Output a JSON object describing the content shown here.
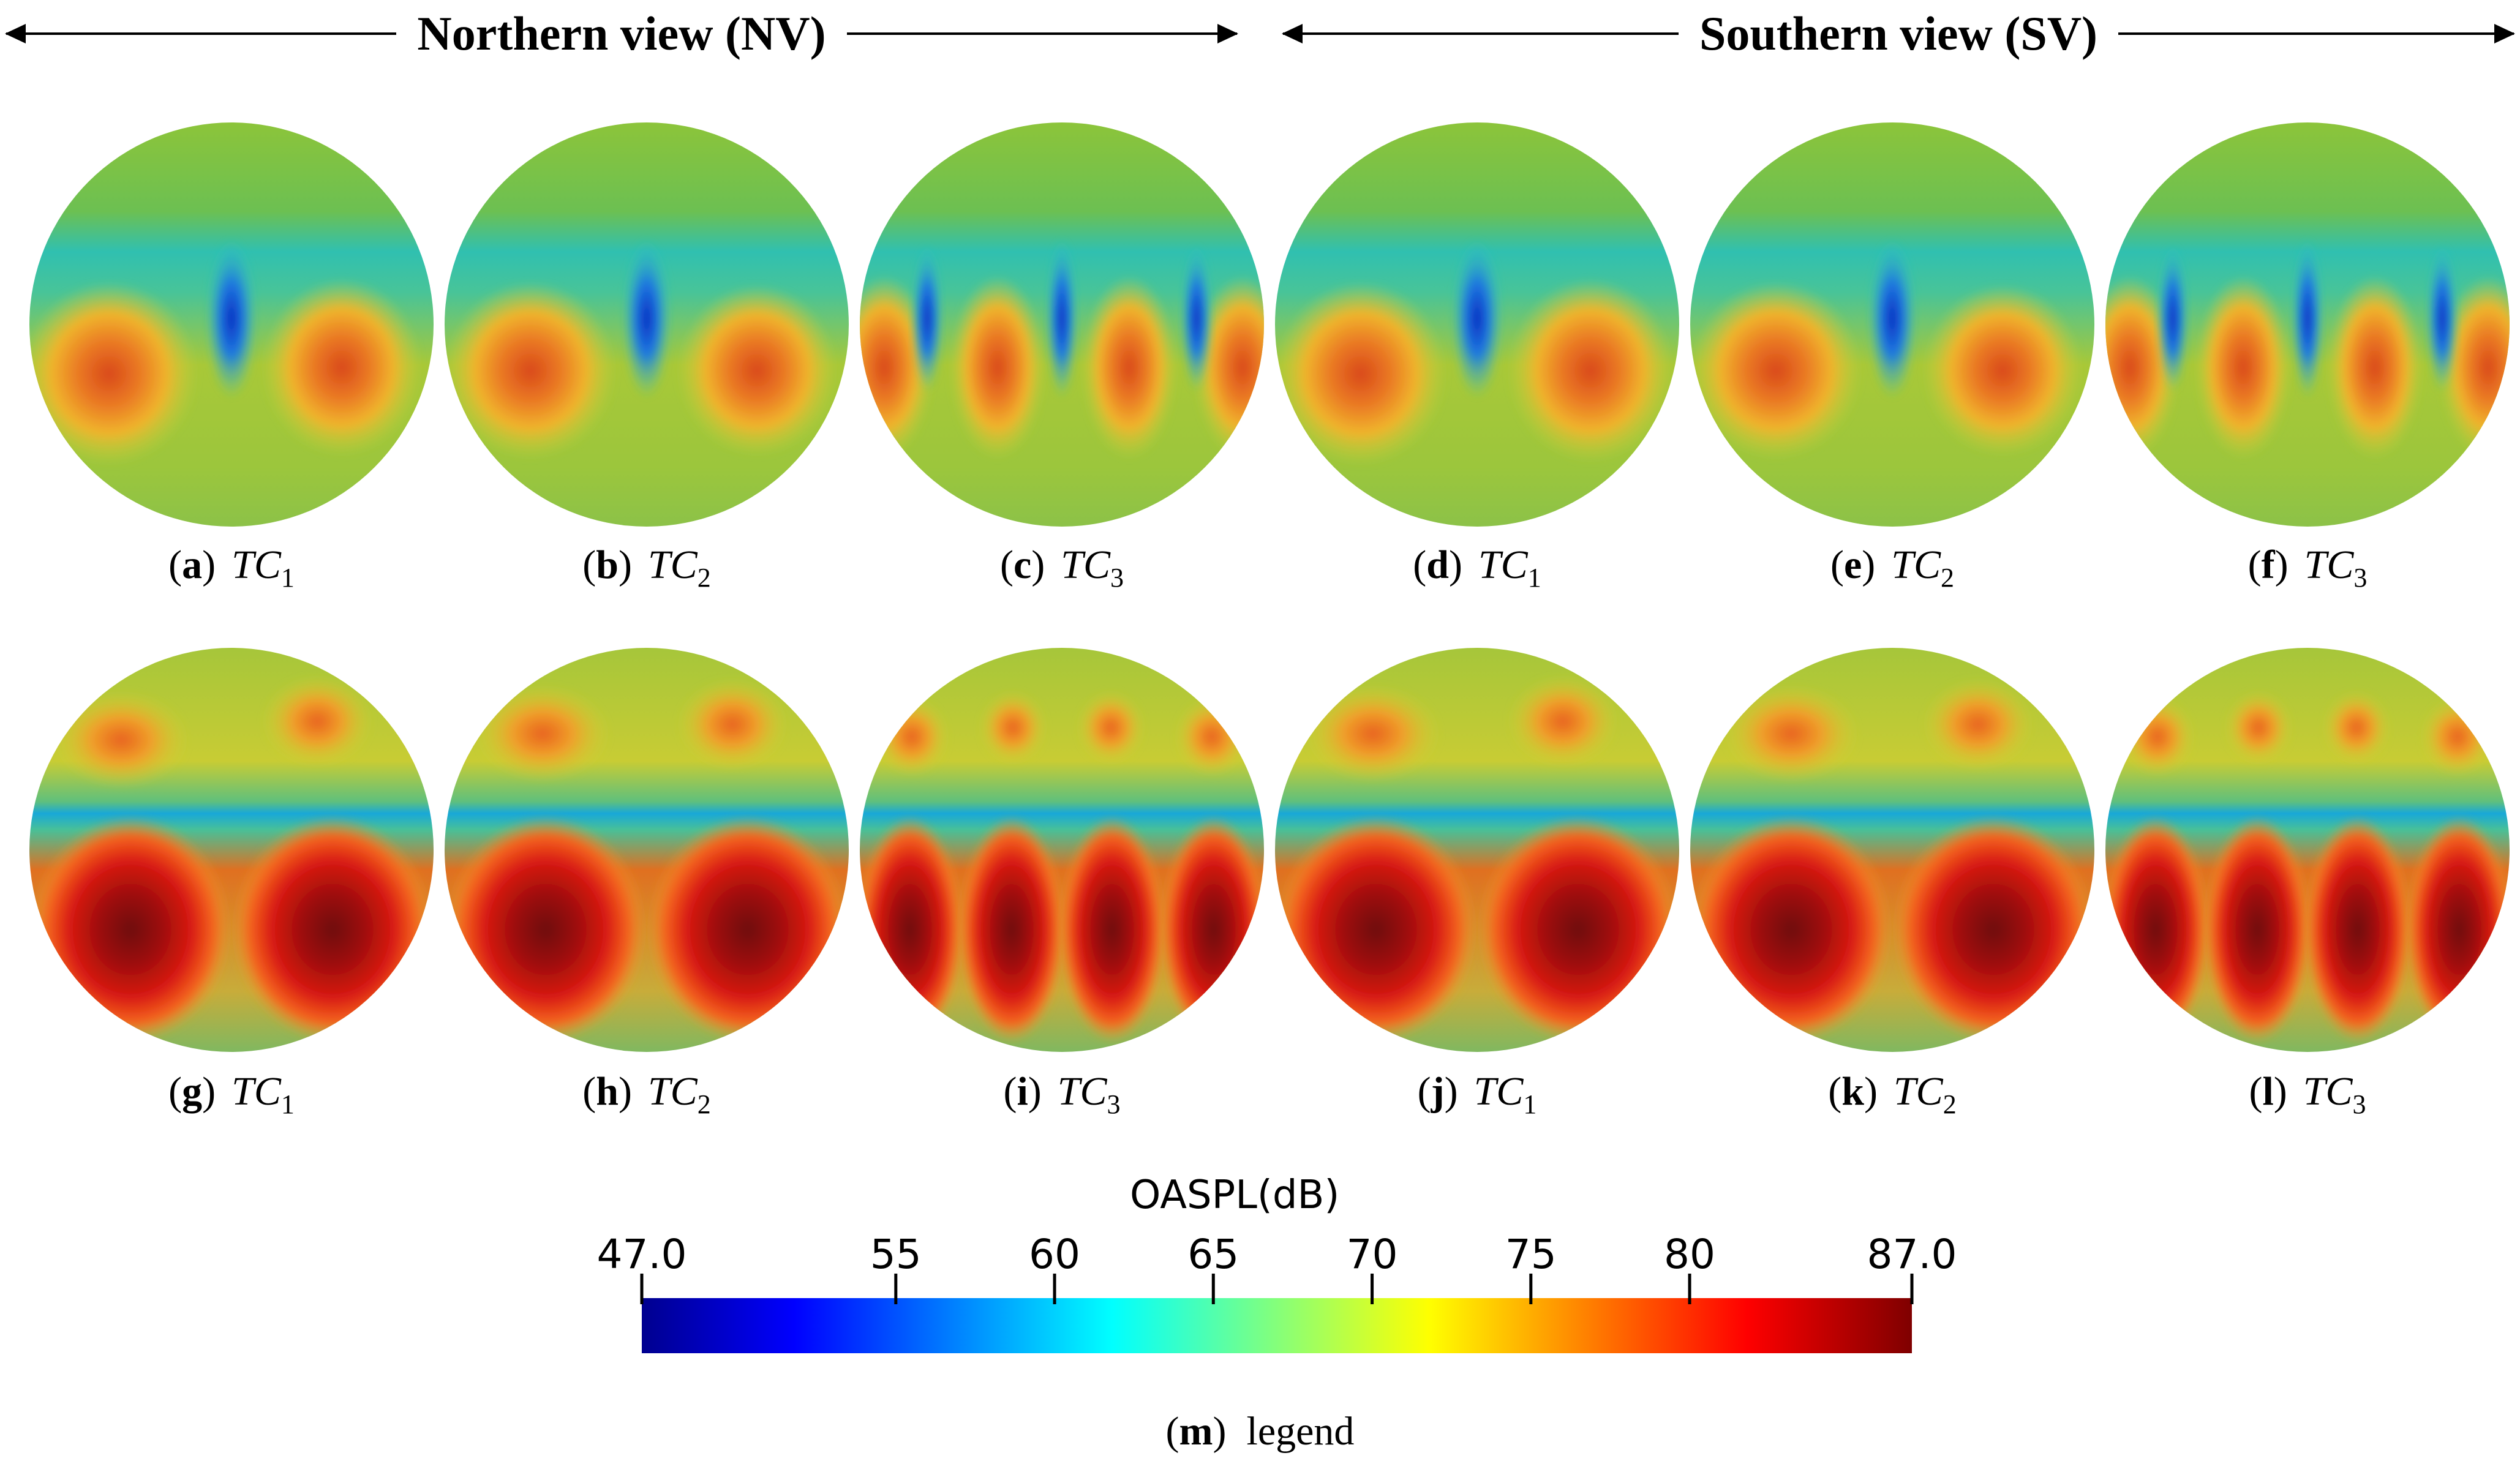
{
  "header": {
    "northern_title": "Northern view (NV)",
    "southern_title": "Southern view (SV)"
  },
  "panels": [
    {
      "tag": "a",
      "tc": "TC",
      "sub": "1"
    },
    {
      "tag": "b",
      "tc": "TC",
      "sub": "2"
    },
    {
      "tag": "c",
      "tc": "TC",
      "sub": "3"
    },
    {
      "tag": "d",
      "tc": "TC",
      "sub": "1"
    },
    {
      "tag": "e",
      "tc": "TC",
      "sub": "2"
    },
    {
      "tag": "f",
      "tc": "TC",
      "sub": "3"
    },
    {
      "tag": "g",
      "tc": "TC",
      "sub": "1"
    },
    {
      "tag": "h",
      "tc": "TC",
      "sub": "2"
    },
    {
      "tag": "i",
      "tc": "TC",
      "sub": "3"
    },
    {
      "tag": "j",
      "tc": "TC",
      "sub": "1"
    },
    {
      "tag": "k",
      "tc": "TC",
      "sub": "2"
    },
    {
      "tag": "l",
      "tc": "TC",
      "sub": "3"
    }
  ],
  "legend": {
    "title": "OASPL(dB)",
    "min": 47.0,
    "max": 87.0,
    "tick_labels": [
      "47.0",
      "55",
      "60",
      "65",
      "70",
      "75",
      "80",
      "87.0"
    ],
    "tick_values": [
      47,
      55,
      60,
      65,
      70,
      75,
      80,
      87
    ],
    "tag": "m",
    "caption": "legend"
  }
}
